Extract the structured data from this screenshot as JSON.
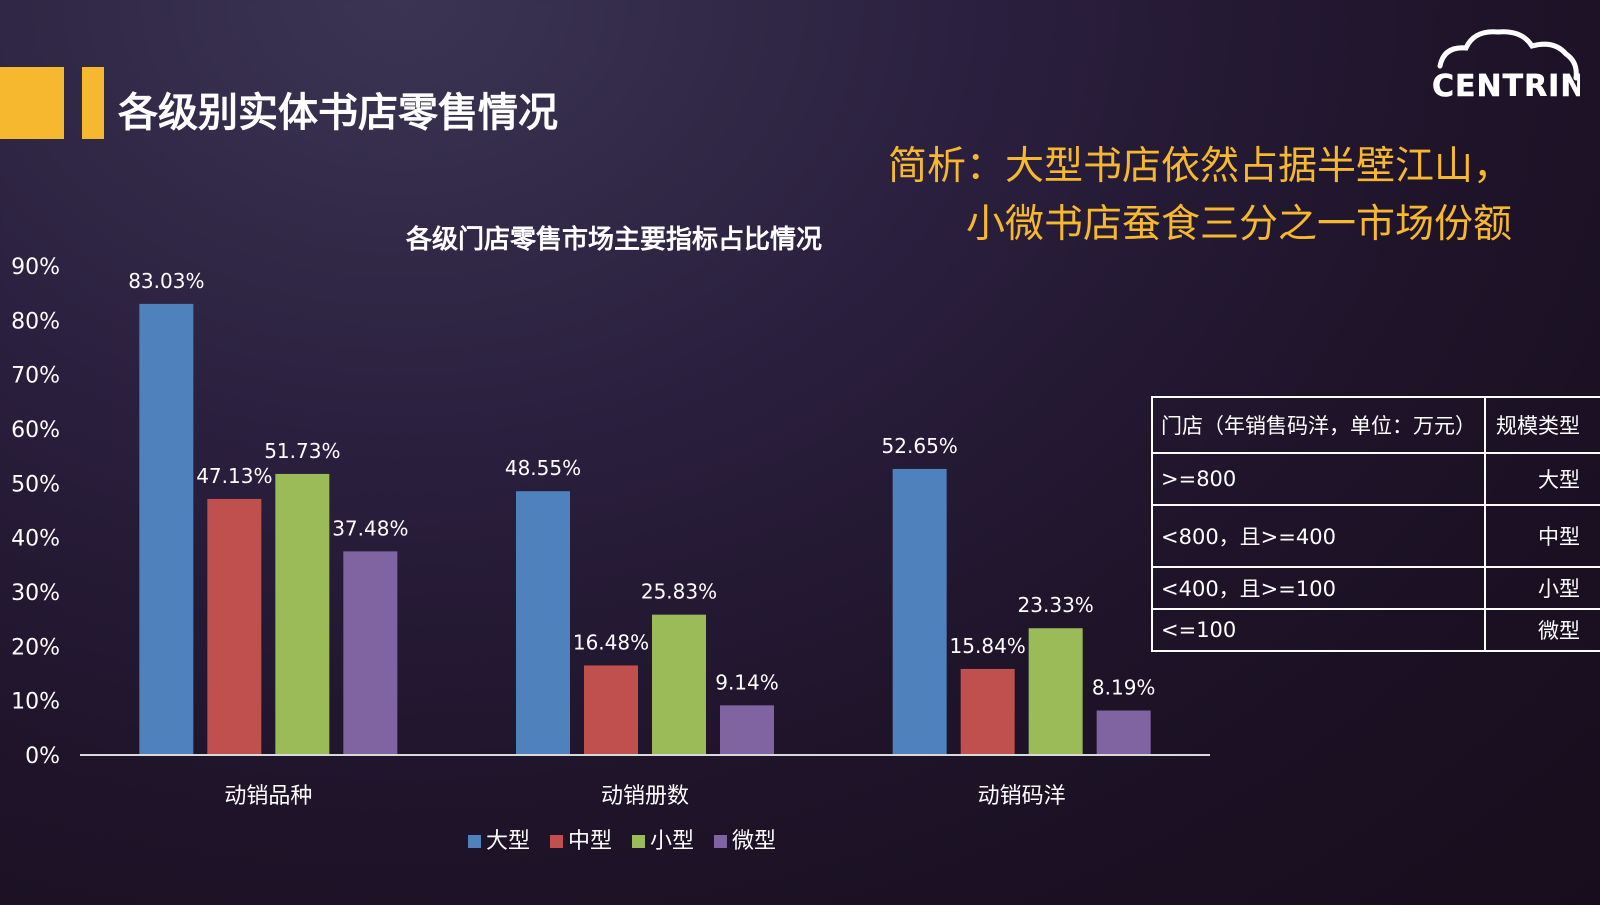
{
  "header": {
    "title": "各级别实体书店零售情况"
  },
  "analysis": {
    "line1": "简析：大型书店依然占据半壁江山，",
    "line2": "小微书店蚕食三分之一市场份额"
  },
  "logo": {
    "text": "CENTRIN"
  },
  "colors": {
    "accent": "#f5b82e",
    "large": "#4f81bd",
    "medium": "#c0504d",
    "small": "#9bbb59",
    "micro": "#8064a2"
  },
  "chart_data": {
    "type": "bar",
    "title": "各级门店零售市场主要指标占比情况",
    "categories": [
      "动销品种",
      "动销册数",
      "动销码洋"
    ],
    "series": [
      {
        "name": "大型",
        "values": [
          83.03,
          48.55,
          52.65
        ],
        "color": "#4f81bd"
      },
      {
        "name": "中型",
        "values": [
          47.13,
          16.48,
          15.84
        ],
        "color": "#c0504d"
      },
      {
        "name": "小型",
        "values": [
          51.73,
          25.83,
          23.33
        ],
        "color": "#9bbb59"
      },
      {
        "name": "微型",
        "values": [
          37.48,
          9.14,
          8.19
        ],
        "color": "#8064a2"
      }
    ],
    "ylim": [
      0,
      90
    ],
    "yticks": [
      "0%",
      "10%",
      "20%",
      "30%",
      "40%",
      "50%",
      "60%",
      "70%",
      "80%",
      "90%"
    ],
    "data_labels": [
      [
        "83.03%",
        "48.55%",
        "52.65%"
      ],
      [
        "47.13%",
        "16.48%",
        "15.84%"
      ],
      [
        "51.73%",
        "25.83%",
        "23.33%"
      ],
      [
        "37.48%",
        "9.14%",
        "8.19%"
      ]
    ],
    "grid": false,
    "legend": "bottom"
  },
  "size_table": {
    "header": [
      "门店（年销售码洋，单位：万元）",
      "规模类型"
    ],
    "rows": [
      {
        "range": ">=800",
        "type": "大型"
      },
      {
        "range": "<800，且>=400",
        "type": "中型"
      },
      {
        "range": "<400，且>=100",
        "type": "小型"
      },
      {
        "range": "<=100",
        "type": "微型"
      }
    ]
  }
}
